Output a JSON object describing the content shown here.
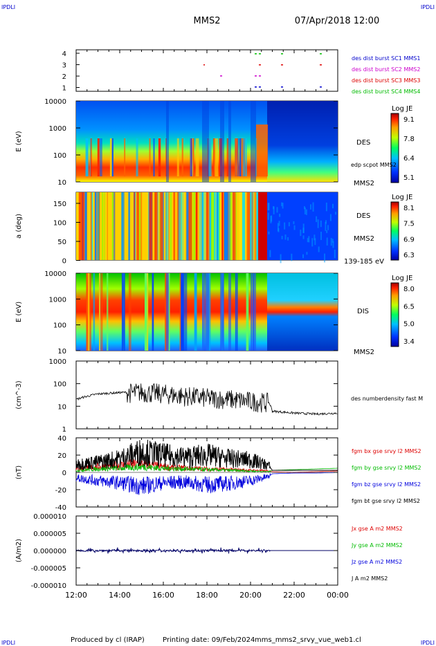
{
  "header": {
    "corner_left_top": "IPDLI",
    "corner_right_top": "IPDLI",
    "corner_left_bottom": "IPDLI",
    "corner_right_bottom": "IPDLI",
    "spacecraft": "MMS2",
    "datetime": "07/Apr/2018 12:00"
  },
  "footer": {
    "produced_by": "Produced by cl (IRAP)",
    "printing_date": "Printing date: 09/Feb/2024",
    "file": "mms_mms2_srvy_vue_web1.cl"
  },
  "time_axis": {
    "ticks": [
      "12:00",
      "14:00",
      "16:00",
      "18:00",
      "20:00",
      "22:00",
      "00:00"
    ]
  },
  "colors": {
    "burst_mms1": "#0000cc",
    "burst_mms2": "#cc00cc",
    "burst_mms3": "#dd0000",
    "burst_mms4": "#00bb00",
    "bx": "#dd0000",
    "by": "#00bb00",
    "bz": "#0000dd",
    "bt": "#000000"
  },
  "chart_data": [
    {
      "type": "scatter",
      "panel": "burst",
      "yticks": [
        "4",
        "3",
        "2",
        "1"
      ],
      "legend": [
        "des dist burst SC1 MMS1",
        "des dist burst SC2 MMS2",
        "des dist burst SC3 MMS3",
        "des dist burst SC4 MMS4"
      ]
    },
    {
      "type": "heatmap",
      "panel": "des-energy",
      "ylabel": "E (eV)",
      "yticks": [
        "10000",
        "1000",
        "100",
        "10"
      ],
      "side_label": "DES",
      "side_label2": "edp scpot MMS2",
      "bottom_label": "MMS2",
      "colorbar": {
        "title": "Log JE",
        "ticks": [
          "9.1",
          "7.8",
          "6.4",
          "5.1"
        ]
      }
    },
    {
      "type": "heatmap",
      "panel": "des-pitch",
      "ylabel": "a (deg)",
      "yticks": [
        "150",
        "100",
        "50",
        "0"
      ],
      "side_label": "DES",
      "side_label2": "MMS2",
      "bottom_label": "139-185 eV",
      "colorbar": {
        "title": "Log JE",
        "ticks": [
          "8.1",
          "7.5",
          "6.9",
          "6.3"
        ]
      }
    },
    {
      "type": "heatmap",
      "panel": "dis-energy",
      "ylabel": "E (eV)",
      "yticks": [
        "10000",
        "1000",
        "100",
        "10"
      ],
      "side_label": "DIS",
      "bottom_label": "MMS2",
      "colorbar": {
        "title": "Log JE",
        "ticks": [
          "8.0",
          "6.5",
          "5.0",
          "3.4"
        ]
      }
    },
    {
      "type": "line",
      "panel": "density",
      "ylabel": "(cm^-3)",
      "yticks": [
        "1000",
        "100",
        "10",
        "1"
      ],
      "legend": [
        "des numberdensity fast M"
      ],
      "x": [
        "12:00",
        "13:00",
        "14:00",
        "15:00",
        "16:00",
        "17:00",
        "18:00",
        "19:00",
        "20:00",
        "20:50",
        "21:00",
        "22:00",
        "23:00",
        "00:00"
      ],
      "values": [
        20,
        35,
        40,
        45,
        38,
        30,
        25,
        22,
        18,
        15,
        6,
        5,
        4.5,
        5
      ]
    },
    {
      "type": "line",
      "panel": "magnetic-field",
      "ylabel": "(nT)",
      "yticks": [
        "40",
        "20",
        "0",
        "-20",
        "-40"
      ],
      "ylim": [
        -50,
        50
      ],
      "series": [
        {
          "name": "fgm bx gse srvy l2 MMS2",
          "values": [
            5,
            8,
            10,
            12,
            8,
            6,
            5,
            4,
            3,
            2,
            1,
            0,
            1,
            2
          ]
        },
        {
          "name": "fgm by gse srvy l2 MMS2",
          "values": [
            3,
            5,
            6,
            8,
            6,
            5,
            4,
            3,
            2,
            1,
            3,
            4,
            5,
            6
          ]
        },
        {
          "name": "fgm bz gse srvy l2 MMS2",
          "values": [
            -8,
            -12,
            -15,
            -20,
            -15,
            -14,
            -18,
            -16,
            -12,
            -6,
            -2,
            -1,
            -1,
            0
          ]
        },
        {
          "name": "fgm bt gse srvy l2 MMS2",
          "values": [
            12,
            15,
            20,
            30,
            25,
            22,
            25,
            20,
            18,
            10,
            3,
            3,
            3,
            3
          ]
        }
      ]
    },
    {
      "type": "line",
      "panel": "current",
      "ylabel": "(A/m2)",
      "yticks": [
        "0.000010",
        "0.000005",
        "0.000000",
        "-0.000005",
        "-0.000010"
      ],
      "ylim": [
        -1e-05,
        1e-05
      ],
      "legend": [
        "Jx gse A m2 MMS2",
        "Jy gse A m2 MMS2",
        "Jz gse A m2 MMS2",
        "J A m2 MMS2"
      ]
    }
  ]
}
